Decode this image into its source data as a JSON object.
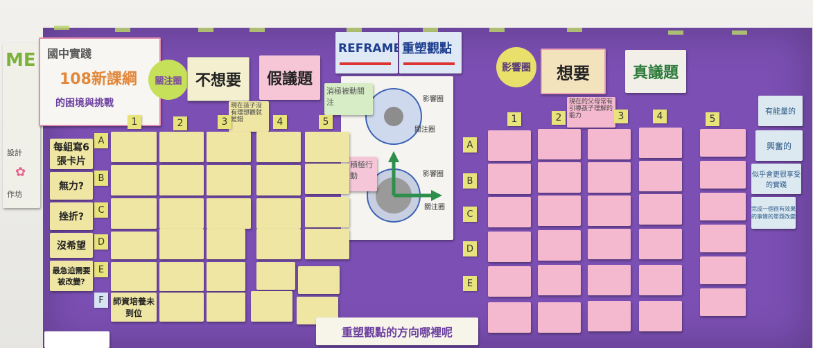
{
  "header": {
    "left_banner_line1": "國中實踐",
    "left_banner_line2": "108新課綱",
    "left_banner_line3": "的困境與挑戰",
    "concern_circle": "關注圈",
    "not_want": "不想要",
    "false_issue": "假議題",
    "reframe": "REFRAME",
    "reframe_sub": "重塑觀點",
    "influence_circle": "影響圈",
    "want": "想要",
    "true_issue": "真議題",
    "passive_concern": "消極被動關注",
    "active": "積極行動"
  },
  "left_column_numbers": [
    "1",
    "2",
    "3",
    "4",
    "5"
  ],
  "right_column_numbers": [
    "1",
    "2",
    "3",
    "4",
    "5"
  ],
  "row_letters": [
    "A",
    "B",
    "C",
    "D",
    "E",
    "F"
  ],
  "left_labels": [
    "每組寫6張卡片",
    "無力?",
    "挫折?",
    "沒希望",
    "最急迫需要被改變?"
  ],
  "middle_label": "現在孩子沒有理想觀就是錯",
  "right_label": "現在的父母常有引導孩子理解的能力",
  "right_side_cards": [
    "有能量的",
    "興奮的",
    "似乎會更很享受的實踐",
    "完成一個很有效果的事情的單題改變"
  ],
  "bottom_banner": "重塑觀點的方向哪裡呢",
  "diagram_labels": {
    "top_outer": "影響圈",
    "top_inner": "關注圈",
    "bottom_outer": "影響圈",
    "bottom_inner": "關注圈"
  },
  "f_card": "師資培養未到位",
  "colors": {
    "board": "#7b4fb3",
    "yellow": "#efe6a4",
    "pink": "#f4b8cf",
    "tape": "#b8d36a"
  }
}
